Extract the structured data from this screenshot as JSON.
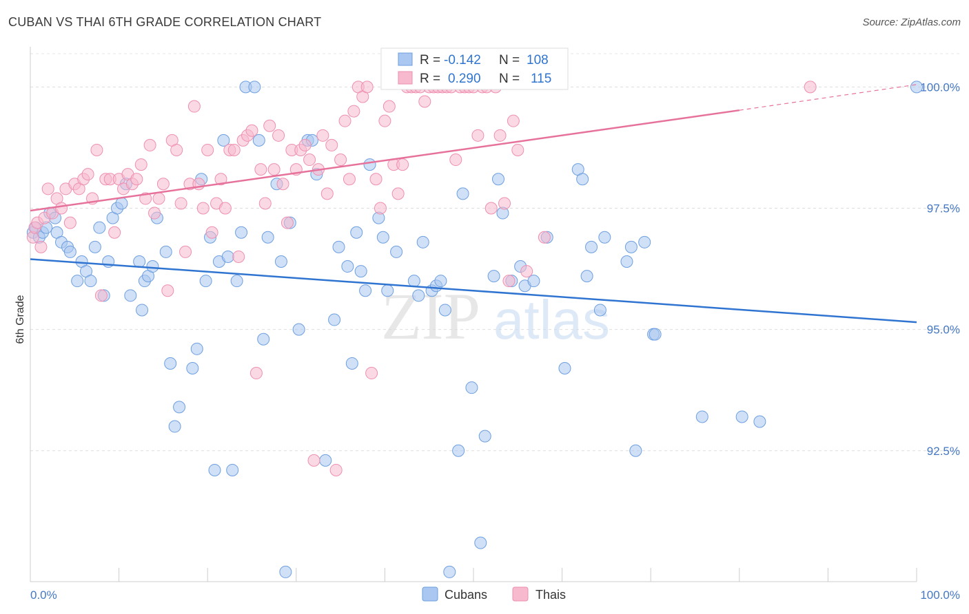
{
  "header": {
    "title": "CUBAN VS THAI 6TH GRADE CORRELATION CHART",
    "source": "Source: ZipAtlas.com"
  },
  "watermark": {
    "zip": "ZIP",
    "atlas": "atlas"
  },
  "colors": {
    "cubans_fill": "#a9c7f0",
    "cubans_stroke": "#6d9fe0",
    "cubans_line": "#2f74d0",
    "thais_fill": "#f7b9cd",
    "thais_stroke": "#ee8fb0",
    "thais_line": "#e6719a",
    "tick_label": "#4477c4"
  },
  "legend_box": {
    "rows": [
      {
        "r_label": "R =",
        "r_value": "-0.142",
        "n_label": "N =",
        "n_value": "108"
      },
      {
        "r_label": "R =",
        "r_value": "0.290",
        "n_label": "N =",
        "n_value": "115"
      }
    ]
  },
  "chart_data": {
    "type": "scatter",
    "title": "CUBAN VS THAI 6TH GRADE CORRELATION CHART",
    "xlabel": "",
    "ylabel": "6th Grade",
    "xlim": [
      0,
      100
    ],
    "ylim": [
      89.8,
      100.8
    ],
    "x_tick_labels": [
      "0.0%",
      "100.0%"
    ],
    "y_ticks": [
      {
        "value": 100.0,
        "label": "100.0%"
      },
      {
        "value": 97.5,
        "label": "97.5%"
      },
      {
        "value": 95.0,
        "label": "95.0%"
      },
      {
        "value": 92.5,
        "label": "92.5%"
      }
    ],
    "grid": true,
    "legend_position": "top-center",
    "series": [
      {
        "name": "Cubans",
        "r": -0.142,
        "n": 108,
        "trend": {
          "x": [
            0,
            100
          ],
          "y": [
            96.45,
            95.15
          ]
        },
        "points": [
          [
            0.3,
            97.0
          ],
          [
            0.6,
            97.1
          ],
          [
            1.0,
            96.9
          ],
          [
            1.4,
            97.0
          ],
          [
            1.8,
            97.1
          ],
          [
            2.2,
            97.4
          ],
          [
            2.8,
            97.3
          ],
          [
            3.0,
            97.0
          ],
          [
            3.5,
            96.8
          ],
          [
            4.2,
            96.7
          ],
          [
            4.5,
            96.6
          ],
          [
            5.3,
            96.0
          ],
          [
            5.8,
            96.4
          ],
          [
            6.3,
            96.2
          ],
          [
            6.8,
            96.0
          ],
          [
            7.3,
            96.7
          ],
          [
            7.8,
            97.1
          ],
          [
            8.3,
            95.7
          ],
          [
            8.8,
            96.4
          ],
          [
            9.3,
            97.3
          ],
          [
            9.8,
            97.5
          ],
          [
            10.3,
            97.6
          ],
          [
            10.8,
            98.0
          ],
          [
            11.3,
            95.7
          ],
          [
            12.3,
            96.4
          ],
          [
            12.6,
            95.4
          ],
          [
            12.9,
            96.0
          ],
          [
            13.3,
            96.1
          ],
          [
            13.8,
            96.3
          ],
          [
            14.3,
            97.3
          ],
          [
            15.3,
            96.6
          ],
          [
            15.8,
            94.3
          ],
          [
            16.3,
            93.0
          ],
          [
            16.8,
            93.4
          ],
          [
            18.3,
            94.2
          ],
          [
            18.8,
            94.6
          ],
          [
            19.3,
            98.1
          ],
          [
            19.8,
            96.0
          ],
          [
            20.3,
            96.9
          ],
          [
            20.8,
            92.1
          ],
          [
            21.3,
            96.4
          ],
          [
            21.8,
            98.9
          ],
          [
            22.3,
            96.5
          ],
          [
            22.8,
            92.1
          ],
          [
            23.3,
            96.0
          ],
          [
            23.8,
            97.0
          ],
          [
            24.3,
            100.0
          ],
          [
            25.3,
            100.0
          ],
          [
            25.8,
            98.9
          ],
          [
            26.3,
            94.8
          ],
          [
            26.8,
            96.9
          ],
          [
            27.8,
            98.0
          ],
          [
            28.3,
            96.4
          ],
          [
            28.8,
            90.0
          ],
          [
            29.3,
            97.2
          ],
          [
            30.3,
            95.0
          ],
          [
            31.3,
            98.9
          ],
          [
            31.8,
            98.9
          ],
          [
            32.3,
            98.2
          ],
          [
            33.3,
            92.3
          ],
          [
            34.3,
            95.2
          ],
          [
            34.8,
            96.7
          ],
          [
            35.8,
            96.3
          ],
          [
            36.3,
            94.3
          ],
          [
            36.8,
            97.0
          ],
          [
            37.3,
            96.2
          ],
          [
            37.8,
            95.8
          ],
          [
            38.3,
            98.4
          ],
          [
            39.3,
            97.3
          ],
          [
            39.8,
            96.9
          ],
          [
            40.3,
            95.8
          ],
          [
            41.3,
            96.6
          ],
          [
            43.3,
            96.0
          ],
          [
            43.8,
            95.7
          ],
          [
            44.3,
            96.8
          ],
          [
            45.3,
            95.8
          ],
          [
            45.8,
            95.9
          ],
          [
            46.3,
            96.0
          ],
          [
            46.8,
            95.4
          ],
          [
            47.3,
            90.0
          ],
          [
            48.3,
            92.5
          ],
          [
            48.8,
            97.8
          ],
          [
            49.8,
            93.8
          ],
          [
            50.8,
            90.6
          ],
          [
            51.3,
            92.8
          ],
          [
            52.3,
            96.1
          ],
          [
            52.8,
            98.1
          ],
          [
            53.3,
            97.4
          ],
          [
            54.3,
            96.0
          ],
          [
            55.3,
            96.3
          ],
          [
            55.8,
            95.9
          ],
          [
            56.8,
            96.0
          ],
          [
            58.3,
            96.9
          ],
          [
            60.3,
            94.2
          ],
          [
            61.8,
            98.3
          ],
          [
            62.3,
            98.1
          ],
          [
            62.8,
            96.1
          ],
          [
            63.3,
            96.7
          ],
          [
            64.3,
            95.4
          ],
          [
            64.8,
            96.9
          ],
          [
            67.3,
            96.4
          ],
          [
            67.8,
            96.7
          ],
          [
            68.3,
            92.5
          ],
          [
            69.3,
            96.8
          ],
          [
            70.3,
            94.9
          ],
          [
            70.5,
            94.9
          ],
          [
            75.8,
            93.2
          ],
          [
            80.3,
            93.2
          ],
          [
            82.3,
            93.1
          ],
          [
            100.0,
            100.0
          ]
        ]
      },
      {
        "name": "Thais",
        "r": 0.29,
        "n": 115,
        "trend": {
          "x": [
            0,
            80
          ],
          "y": [
            97.45,
            99.52
          ]
        },
        "trend_dashed": {
          "x": [
            80,
            100
          ],
          "y": [
            99.52,
            100.05
          ]
        },
        "points": [
          [
            0.3,
            96.9
          ],
          [
            0.5,
            97.1
          ],
          [
            0.8,
            97.2
          ],
          [
            1.2,
            96.7
          ],
          [
            1.6,
            97.3
          ],
          [
            2.0,
            97.9
          ],
          [
            2.5,
            97.4
          ],
          [
            3.0,
            97.7
          ],
          [
            3.5,
            97.5
          ],
          [
            4.0,
            97.9
          ],
          [
            4.5,
            97.2
          ],
          [
            5.0,
            98.0
          ],
          [
            5.5,
            97.9
          ],
          [
            6.0,
            98.1
          ],
          [
            6.5,
            98.2
          ],
          [
            7.0,
            97.7
          ],
          [
            7.5,
            98.7
          ],
          [
            8.0,
            95.7
          ],
          [
            8.5,
            98.1
          ],
          [
            9.0,
            98.1
          ],
          [
            9.5,
            97.0
          ],
          [
            10.0,
            98.1
          ],
          [
            10.5,
            97.9
          ],
          [
            11.0,
            98.2
          ],
          [
            11.5,
            98.0
          ],
          [
            12.0,
            98.1
          ],
          [
            12.5,
            98.4
          ],
          [
            13.0,
            97.7
          ],
          [
            13.5,
            98.8
          ],
          [
            14.0,
            97.4
          ],
          [
            14.5,
            97.7
          ],
          [
            15.0,
            98.0
          ],
          [
            15.5,
            95.8
          ],
          [
            16.0,
            98.9
          ],
          [
            16.5,
            98.7
          ],
          [
            17.0,
            97.6
          ],
          [
            17.5,
            96.6
          ],
          [
            18.0,
            98.0
          ],
          [
            18.5,
            99.6
          ],
          [
            19.0,
            98.0
          ],
          [
            19.5,
            97.5
          ],
          [
            20.0,
            98.7
          ],
          [
            20.5,
            97.0
          ],
          [
            21.0,
            97.6
          ],
          [
            21.5,
            98.1
          ],
          [
            22.0,
            97.5
          ],
          [
            22.5,
            98.7
          ],
          [
            23.0,
            98.7
          ],
          [
            23.5,
            96.5
          ],
          [
            24.0,
            98.9
          ],
          [
            24.5,
            99.0
          ],
          [
            25.0,
            99.1
          ],
          [
            25.5,
            94.1
          ],
          [
            26.0,
            98.3
          ],
          [
            26.5,
            97.6
          ],
          [
            27.0,
            99.2
          ],
          [
            27.5,
            98.3
          ],
          [
            28.0,
            99.0
          ],
          [
            28.5,
            98.0
          ],
          [
            29.0,
            97.2
          ],
          [
            29.5,
            98.7
          ],
          [
            30.0,
            98.3
          ],
          [
            30.5,
            98.7
          ],
          [
            31.0,
            98.8
          ],
          [
            31.5,
            98.5
          ],
          [
            32.0,
            92.3
          ],
          [
            32.5,
            98.3
          ],
          [
            33.0,
            99.0
          ],
          [
            33.5,
            97.8
          ],
          [
            34.0,
            98.8
          ],
          [
            34.5,
            92.1
          ],
          [
            35.0,
            98.5
          ],
          [
            35.5,
            99.3
          ],
          [
            36.0,
            98.1
          ],
          [
            36.5,
            99.5
          ],
          [
            37.0,
            100.0
          ],
          [
            37.5,
            99.8
          ],
          [
            38.0,
            100.0
          ],
          [
            38.5,
            94.1
          ],
          [
            39.0,
            98.1
          ],
          [
            39.5,
            97.5
          ],
          [
            40.0,
            99.3
          ],
          [
            40.5,
            99.6
          ],
          [
            41.0,
            98.4
          ],
          [
            41.5,
            97.8
          ],
          [
            42.0,
            98.4
          ],
          [
            42.5,
            100.0
          ],
          [
            43.0,
            100.0
          ],
          [
            43.5,
            100.0
          ],
          [
            44.0,
            100.0
          ],
          [
            44.5,
            99.7
          ],
          [
            45.0,
            100.0
          ],
          [
            45.5,
            100.0
          ],
          [
            46.0,
            100.0
          ],
          [
            46.5,
            100.0
          ],
          [
            47.0,
            100.0
          ],
          [
            47.5,
            100.0
          ],
          [
            48.0,
            98.5
          ],
          [
            48.5,
            100.0
          ],
          [
            49.0,
            100.0
          ],
          [
            49.5,
            100.0
          ],
          [
            50.0,
            100.0
          ],
          [
            50.5,
            99.0
          ],
          [
            51.0,
            100.0
          ],
          [
            51.5,
            100.0
          ],
          [
            52.0,
            97.5
          ],
          [
            52.5,
            100.0
          ],
          [
            53.0,
            99.0
          ],
          [
            53.5,
            97.6
          ],
          [
            54.0,
            96.0
          ],
          [
            54.5,
            99.3
          ],
          [
            55.0,
            98.7
          ],
          [
            56.0,
            96.2
          ],
          [
            58.0,
            96.9
          ],
          [
            88.0,
            100.0
          ]
        ]
      }
    ]
  }
}
